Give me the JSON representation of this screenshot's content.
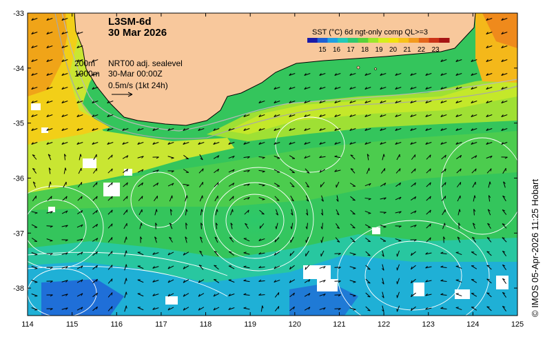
{
  "map": {
    "product": "L3SM-6d",
    "date": "30 Mar 2026",
    "colorbar": {
      "title": "SST (°C) 6d ngt-only comp QL>=3",
      "ticks": [
        "15",
        "16",
        "17",
        "18",
        "19",
        "20",
        "21",
        "22",
        "23"
      ],
      "colors": [
        "#1a1aa8",
        "#1f5fd4",
        "#1fa0e0",
        "#22c9b8",
        "#2fc86e",
        "#58d23a",
        "#9be62a",
        "#d6ee1c",
        "#f2e20e",
        "#f7c11a",
        "#f39a1e",
        "#e4661c",
        "#cc3418",
        "#a61414"
      ]
    },
    "legend": {
      "line1_a": "200m",
      "line1_b": "NRT00 adj. sealevel",
      "line2_a": "1000m",
      "line2_b": "30-Mar 00:00Z",
      "line3": "0.5m/s (1kt 24h)"
    },
    "x_axis_ticks": [
      "114",
      "115",
      "116",
      "117",
      "118",
      "119",
      "120",
      "121",
      "122",
      "123",
      "124",
      "125"
    ],
    "y_axis_ticks": [
      "-33",
      "-34",
      "-35",
      "-36",
      "-37",
      "-38"
    ],
    "credit": "© IMOS 05-Apr-2026 11:25 Hobart",
    "land_color": "#f8c89c"
  }
}
